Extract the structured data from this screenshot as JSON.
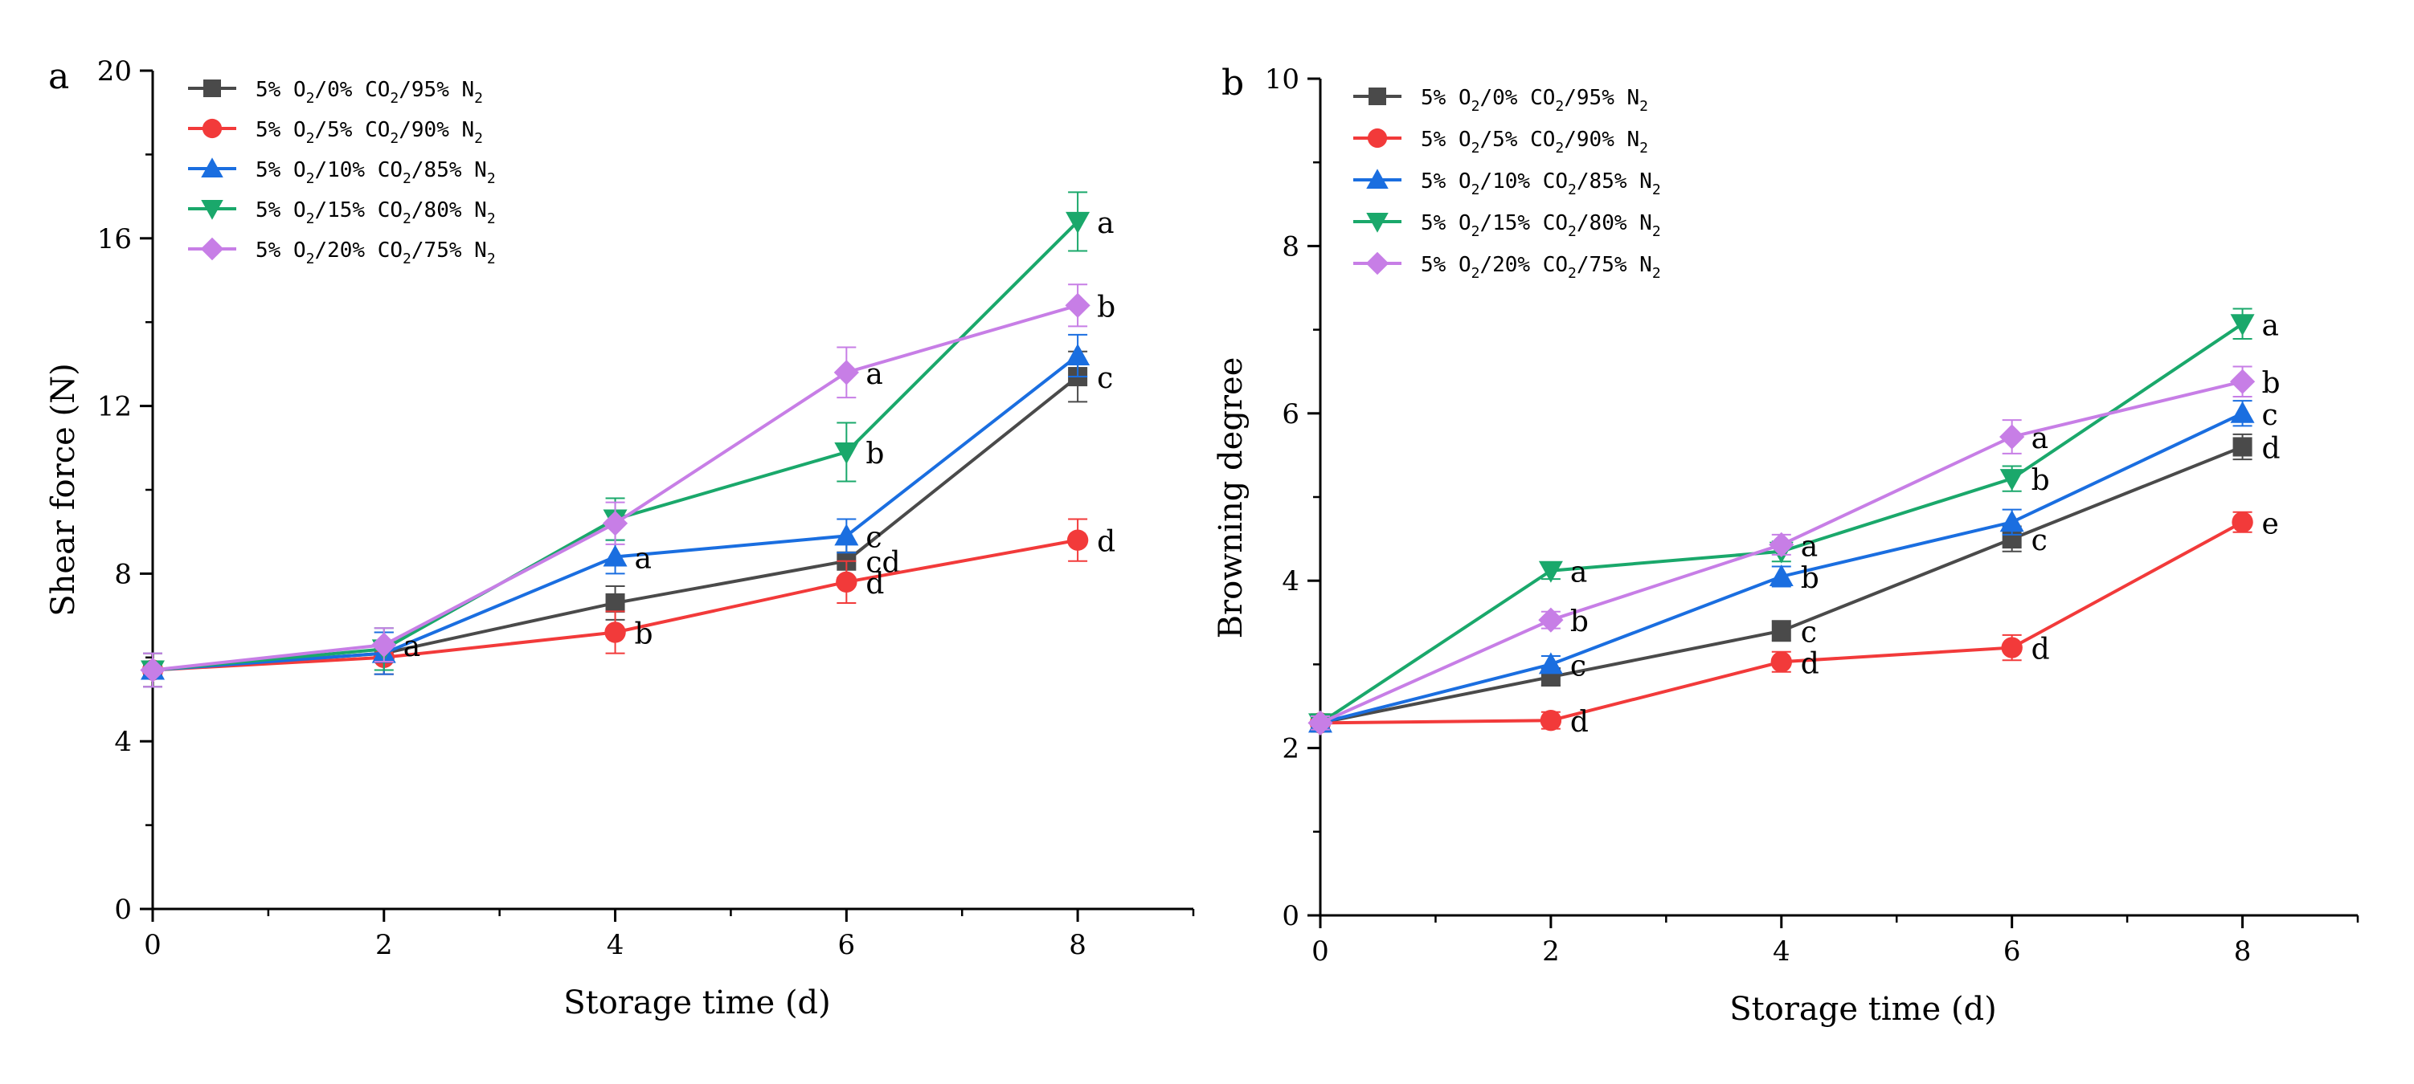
{
  "chart_data": [
    {
      "type": "line",
      "panel_label": "a",
      "xlabel": "Storage time (d)",
      "ylabel": "Shear force (N)",
      "x": [
        0,
        2,
        4,
        6,
        8
      ],
      "xlim": [
        0,
        9
      ],
      "ylim": [
        0,
        20
      ],
      "x_ticks": [
        0,
        2,
        4,
        6,
        8
      ],
      "y_ticks": [
        0,
        4,
        8,
        12,
        16,
        20
      ],
      "legend_position": "top-left",
      "series": [
        {
          "name": "5% O2/0% CO2/95% N2",
          "legend": {
            "p1": "5% O",
            "s1": "2",
            "p2": "/0% CO",
            "s2": "2",
            "p3": "/95% N",
            "s3": "2"
          },
          "color": "#4a4a4a",
          "marker": "square",
          "values": [
            5.7,
            6.1,
            7.3,
            8.3,
            12.7
          ],
          "errors": [
            0.4,
            0.5,
            0.4,
            0.4,
            0.6
          ],
          "labels": [
            "",
            "",
            "",
            "cd",
            "c"
          ]
        },
        {
          "name": "5% O2/5% CO2/90% N2",
          "legend": {
            "p1": "5% O",
            "s1": "2",
            "p2": "/5% CO",
            "s2": "2",
            "p3": "/90% N",
            "s3": "2"
          },
          "color": "#f23a3a",
          "marker": "circle",
          "values": [
            5.7,
            6.0,
            6.6,
            7.8,
            8.8
          ],
          "errors": [
            0.4,
            0.4,
            0.5,
            0.5,
            0.5
          ],
          "labels": [
            "",
            "",
            "b",
            "d",
            "d"
          ]
        },
        {
          "name": "5% O2/10% CO2/85% N2",
          "legend": {
            "p1": "5% O",
            "s1": "2",
            "p2": "/10% CO",
            "s2": "2",
            "p3": "/85% N",
            "s3": "2"
          },
          "color": "#1a6ee0",
          "marker": "triangle-up",
          "values": [
            5.7,
            6.1,
            8.4,
            8.9,
            13.2
          ],
          "errors": [
            0.4,
            0.5,
            0.4,
            0.4,
            0.5
          ],
          "labels": [
            "",
            "",
            "a",
            "c",
            ""
          ]
        },
        {
          "name": "5% O2/15% CO2/80% N2",
          "legend": {
            "p1": "5% O",
            "s1": "2",
            "p2": "/15% CO",
            "s2": "2",
            "p3": "/80% N",
            "s3": "2"
          },
          "color": "#1aa86b",
          "marker": "triangle-down",
          "values": [
            5.7,
            6.2,
            9.3,
            10.9,
            16.4
          ],
          "errors": [
            0.4,
            0.5,
            0.5,
            0.7,
            0.7
          ],
          "labels": [
            "",
            "",
            "",
            "b",
            "a"
          ]
        },
        {
          "name": "5% O2/20% CO2/75% N2",
          "legend": {
            "p1": "5% O",
            "s1": "2",
            "p2": "/20% CO",
            "s2": "2",
            "p3": "/75% N",
            "s3": "2"
          },
          "color": "#c77ee6",
          "marker": "diamond",
          "values": [
            5.7,
            6.3,
            9.2,
            12.8,
            14.4
          ],
          "errors": [
            0.4,
            0.4,
            0.5,
            0.6,
            0.5
          ],
          "labels": [
            "",
            "a",
            "",
            "a",
            "b"
          ]
        }
      ]
    },
    {
      "type": "line",
      "panel_label": "b",
      "xlabel": "Storage time (d)",
      "ylabel": "Browning degree",
      "x": [
        0,
        2,
        4,
        6,
        8
      ],
      "xlim": [
        0,
        9
      ],
      "ylim": [
        0,
        10
      ],
      "x_ticks": [
        0,
        2,
        4,
        6,
        8
      ],
      "y_ticks": [
        0,
        2,
        4,
        6,
        8,
        10
      ],
      "legend_position": "top-left",
      "series": [
        {
          "name": "5% O2/0% CO2/95% N2",
          "legend": {
            "p1": "5% O",
            "s1": "2",
            "p2": "/0% CO",
            "s2": "2",
            "p3": "/95% N",
            "s3": "2"
          },
          "color": "#4a4a4a",
          "marker": "square",
          "values": [
            2.3,
            2.85,
            3.4,
            4.5,
            5.6
          ],
          "errors": [
            0.08,
            0.1,
            0.12,
            0.15,
            0.15
          ],
          "labels": [
            "",
            "",
            "c",
            "c",
            "d"
          ]
        },
        {
          "name": "5% O2/5% CO2/90% N2",
          "legend": {
            "p1": "5% O",
            "s1": "2",
            "p2": "/5% CO",
            "s2": "2",
            "p3": "/90% N",
            "s3": "2"
          },
          "color": "#f23a3a",
          "marker": "circle",
          "values": [
            2.3,
            2.33,
            3.03,
            3.2,
            4.7
          ],
          "errors": [
            0.08,
            0.1,
            0.12,
            0.15,
            0.12
          ],
          "labels": [
            "",
            "d",
            "d",
            "d",
            "e"
          ]
        },
        {
          "name": "5% O2/10% CO2/85% N2",
          "legend": {
            "p1": "5% O",
            "s1": "2",
            "p2": "/10% CO",
            "s2": "2",
            "p3": "/85% N",
            "s3": "2"
          },
          "color": "#1a6ee0",
          "marker": "triangle-up",
          "values": [
            2.3,
            3.0,
            4.05,
            4.7,
            6.0
          ],
          "errors": [
            0.08,
            0.1,
            0.12,
            0.15,
            0.15
          ],
          "labels": [
            "",
            "c",
            "b",
            "",
            "c"
          ]
        },
        {
          "name": "5% O2/15% CO2/80% N2",
          "legend": {
            "p1": "5% O",
            "s1": "2",
            "p2": "/15% CO",
            "s2": "2",
            "p3": "/80% N",
            "s3": "2"
          },
          "color": "#1aa86b",
          "marker": "triangle-down",
          "values": [
            2.3,
            4.12,
            4.35,
            5.22,
            7.07
          ],
          "errors": [
            0.08,
            0.1,
            0.12,
            0.15,
            0.18
          ],
          "labels": [
            "",
            "a",
            "",
            "b",
            "a"
          ]
        },
        {
          "name": "5% O2/20% CO2/75% N2",
          "legend": {
            "p1": "5% O",
            "s1": "2",
            "p2": "/20% CO",
            "s2": "2",
            "p3": "/75% N",
            "s3": "2"
          },
          "color": "#c77ee6",
          "marker": "diamond",
          "values": [
            2.3,
            3.53,
            4.43,
            5.72,
            6.38
          ],
          "errors": [
            0.08,
            0.1,
            0.12,
            0.2,
            0.18
          ],
          "labels": [
            "",
            "b",
            "a",
            "a",
            "b"
          ]
        }
      ]
    }
  ]
}
